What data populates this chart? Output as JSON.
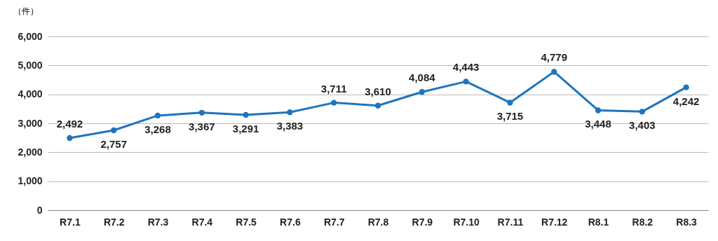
{
  "chart_data": {
    "type": "line",
    "ylabel": "（件）",
    "categories": [
      "R7.1",
      "R7.2",
      "R7.3",
      "R7.4",
      "R7.5",
      "R7.6",
      "R7.7",
      "R7.8",
      "R7.9",
      "R7.10",
      "R7.11",
      "R7.12",
      "R8.1",
      "R8.2",
      "R8.3"
    ],
    "series": [
      {
        "color": "#1f74be",
        "values": [
          2492,
          2757,
          3268,
          3367,
          3291,
          3383,
          3711,
          3610,
          4084,
          4443,
          3715,
          4779,
          3448,
          3403,
          4242
        ],
        "value_labels": [
          "2,492",
          "2,757",
          "3,268",
          "3,367",
          "3,291",
          "3,383",
          "3,711",
          "3,610",
          "4,084",
          "4,443",
          "3,715",
          "4,779",
          "3,448",
          "3,403",
          "4,242"
        ]
      }
    ],
    "ylim": [
      0,
      6000
    ],
    "yticks": [
      0,
      {
        "value": 1000,
        "label": "1,000"
      },
      {
        "value": 2000,
        "label": "2,000"
      },
      {
        "value": 3000,
        "label": "3,000"
      },
      {
        "value": 4000,
        "label": "4,000"
      },
      {
        "value": 5000,
        "label": "5,000"
      },
      {
        "value": 6000,
        "label": "6,000"
      }
    ],
    "grid": "y",
    "marker": "circle",
    "line_style": "solid"
  }
}
